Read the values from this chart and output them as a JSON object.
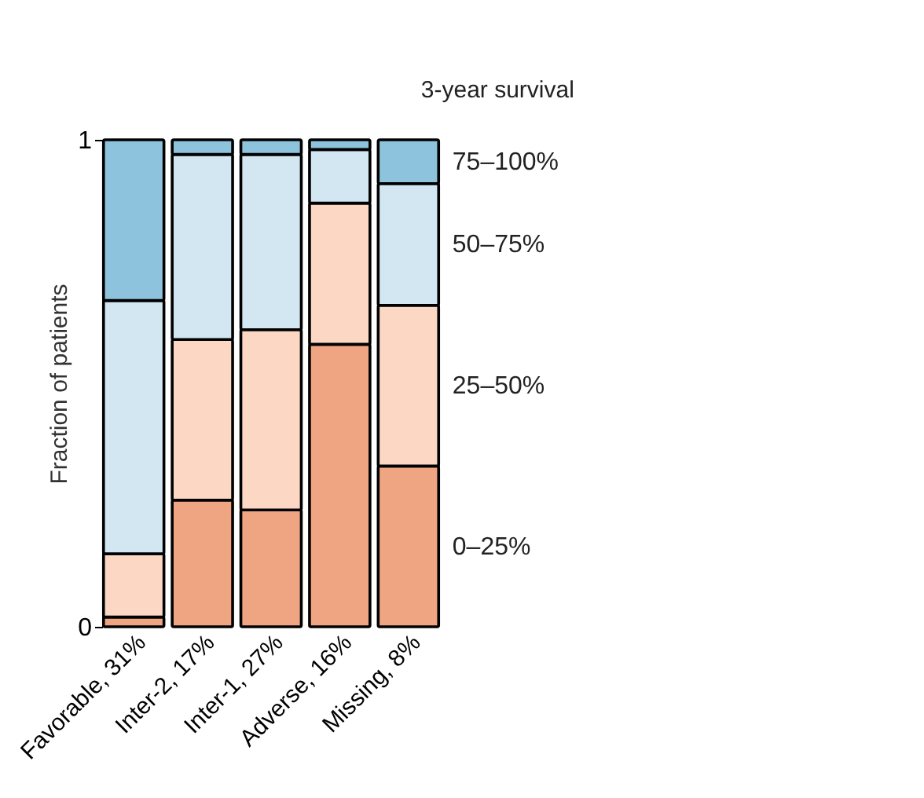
{
  "chart_data": {
    "type": "bar",
    "stacked": true,
    "ylabel": "Fraction of patients",
    "legend_title": "3-year survival",
    "categories": [
      "Favorable, 31%",
      "Inter-2, 17%",
      "Inter-1, 27%",
      "Adverse, 16%",
      "Missing, 8%"
    ],
    "ylim": [
      0,
      1
    ],
    "yticks": [
      0,
      1
    ],
    "grid": false,
    "series": [
      {
        "name": "0–25%",
        "color": "#f0a582",
        "values": [
          0.02,
          0.26,
          0.24,
          0.58,
          0.33
        ]
      },
      {
        "name": "25–50%",
        "color": "#fbd7c4",
        "values": [
          0.13,
          0.33,
          0.37,
          0.29,
          0.33
        ]
      },
      {
        "name": "50–75%",
        "color": "#d3e7f3",
        "values": [
          0.52,
          0.38,
          0.36,
          0.11,
          0.25
        ]
      },
      {
        "name": "75–100%",
        "color": "#8ec3dd",
        "values": [
          0.33,
          0.03,
          0.03,
          0.02,
          0.09
        ]
      }
    ]
  }
}
